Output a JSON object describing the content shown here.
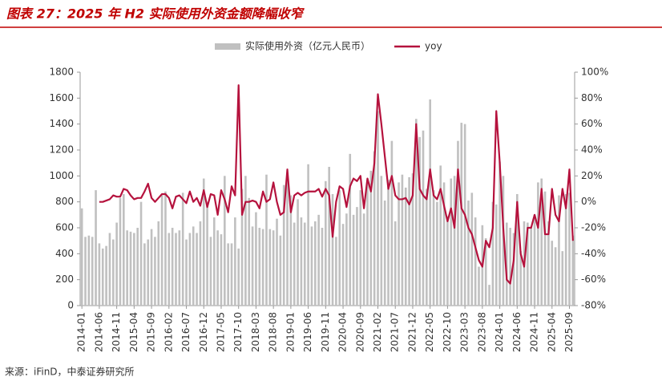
{
  "chart_data": {
    "type": "bar_line",
    "title": "图表 27：2025 年 H2 实际使用外资金额降幅收窄",
    "source": "来源：iFinD，中泰证券研究所",
    "categories": [
      "2014-01",
      null,
      null,
      null,
      null,
      "2014-06",
      null,
      null,
      null,
      null,
      "2014-11",
      null,
      null,
      null,
      null,
      "2015-04",
      null,
      null,
      null,
      null,
      "2015-09",
      null,
      null,
      null,
      null,
      "2016-02",
      null,
      null,
      null,
      null,
      "2016-07",
      null,
      null,
      null,
      null,
      "2016-12",
      null,
      null,
      null,
      null,
      "2017-05",
      null,
      null,
      null,
      null,
      "2017-10",
      null,
      null,
      null,
      null,
      "2018-03",
      null,
      null,
      null,
      null,
      "2018-08",
      null,
      null,
      null,
      null,
      "2019-01",
      null,
      null,
      null,
      null,
      "2019-06",
      null,
      null,
      null,
      null,
      "2019-11",
      null,
      null,
      null,
      null,
      "2020-04",
      null,
      null,
      null,
      null,
      "2020-09",
      null,
      null,
      null,
      null,
      "2021-02",
      null,
      null,
      null,
      null,
      "2021-07",
      null,
      null,
      null,
      null,
      "2021-12",
      null,
      null,
      null,
      null,
      "2022-05",
      null,
      null,
      null,
      null,
      "2022-10",
      null,
      null,
      null,
      null,
      "2023-03",
      null,
      null,
      null,
      null,
      "2023-08",
      null,
      null,
      null,
      null,
      "2024-01",
      null,
      null,
      null,
      null,
      "2024-06",
      null,
      null,
      null,
      null,
      "2024-11",
      null,
      null,
      null,
      null,
      "2025-04",
      null,
      null,
      null,
      null,
      "2025-09",
      null
    ],
    "series": [
      {
        "name": "实际使用外资（亿元人民币）",
        "type": "bar",
        "color": "#c0c0c0",
        "values": [
          750,
          530,
          540,
          530,
          890,
          480,
          440,
          460,
          560,
          510,
          640,
          830,
          860,
          580,
          570,
          560,
          600,
          800,
          480,
          510,
          590,
          530,
          650,
          850,
          880,
          560,
          600,
          560,
          580,
          870,
          510,
          560,
          610,
          560,
          650,
          980,
          800,
          530,
          680,
          580,
          550,
          1000,
          480,
          480,
          680,
          440,
          900,
          1000,
          830,
          610,
          720,
          600,
          590,
          1010,
          590,
          580,
          670,
          540,
          930,
          1000,
          850,
          640,
          820,
          680,
          640,
          1090,
          610,
          650,
          700,
          600,
          960,
          1070,
          860,
          530,
          890,
          630,
          710,
          1170,
          700,
          760,
          890,
          710,
          960,
          1040,
          1190,
          1500,
          1000,
          810,
          970,
          1270,
          650,
          950,
          1010,
          910,
          990,
          1020,
          1440,
          1300,
          1350,
          900,
          1590,
          890,
          800,
          1080,
          950,
          690,
          980,
          1000,
          1270,
          1410,
          1400,
          810,
          870,
          680,
          300,
          620,
          520,
          160,
          800,
          780,
          1110,
          1000,
          640,
          600,
          560,
          860,
          420,
          650,
          640,
          610,
          700,
          950,
          980,
          880,
          650,
          500,
          450,
          850,
          420,
          860,
          870,
          540
        ]
      },
      {
        "name": "yoy",
        "type": "line",
        "axis": "y2",
        "color": "#b5123d",
        "values": [
          null,
          null,
          null,
          null,
          null,
          0,
          0,
          1,
          2,
          5,
          4,
          4,
          10,
          9,
          5,
          2,
          3,
          3,
          8,
          14,
          3,
          0,
          3,
          6,
          6,
          3,
          -5,
          4,
          5,
          2,
          -1,
          8,
          0,
          3,
          -3,
          9,
          -4,
          6,
          5,
          -10,
          9,
          2,
          -8,
          12,
          5,
          90,
          -10,
          0,
          0,
          1,
          0,
          -5,
          8,
          0,
          2,
          15,
          0,
          -10,
          -8,
          25,
          -8,
          5,
          7,
          5,
          7,
          8,
          8,
          8,
          10,
          4,
          10,
          5,
          -27,
          0,
          12,
          10,
          -4,
          12,
          18,
          16,
          20,
          -5,
          18,
          8,
          30,
          83,
          60,
          35,
          10,
          20,
          5,
          2,
          2,
          3,
          -2,
          5,
          60,
          10,
          5,
          2,
          25,
          5,
          2,
          10,
          -3,
          -15,
          -5,
          -20,
          25,
          -5,
          -10,
          -20,
          -25,
          -35,
          -45,
          -50,
          -30,
          -35,
          -20,
          70,
          30,
          -20,
          -60,
          -63,
          -45,
          0,
          -40,
          -50,
          -20,
          -20,
          -10,
          -20,
          10,
          -25,
          -25,
          10,
          -10,
          -15,
          10,
          -5,
          25,
          -30
        ]
      }
    ],
    "ylim": [
      0,
      1800
    ],
    "yticks": [
      0,
      200,
      400,
      600,
      800,
      1000,
      1200,
      1400,
      1600,
      1800
    ],
    "y2lim": [
      -80,
      100
    ],
    "y2ticks": [
      {
        "value": -80,
        "label": "-80%"
      },
      {
        "value": -60,
        "label": "-60%"
      },
      {
        "value": -40,
        "label": "-40%"
      },
      {
        "value": -20,
        "label": "-20%"
      },
      {
        "value": 0,
        "label": "0%"
      },
      {
        "value": 20,
        "label": "20%"
      },
      {
        "value": 40,
        "label": "40%"
      },
      {
        "value": 60,
        "label": "60%"
      },
      {
        "value": 80,
        "label": "80%"
      },
      {
        "value": 100,
        "label": "100%"
      }
    ],
    "legend": "top"
  }
}
